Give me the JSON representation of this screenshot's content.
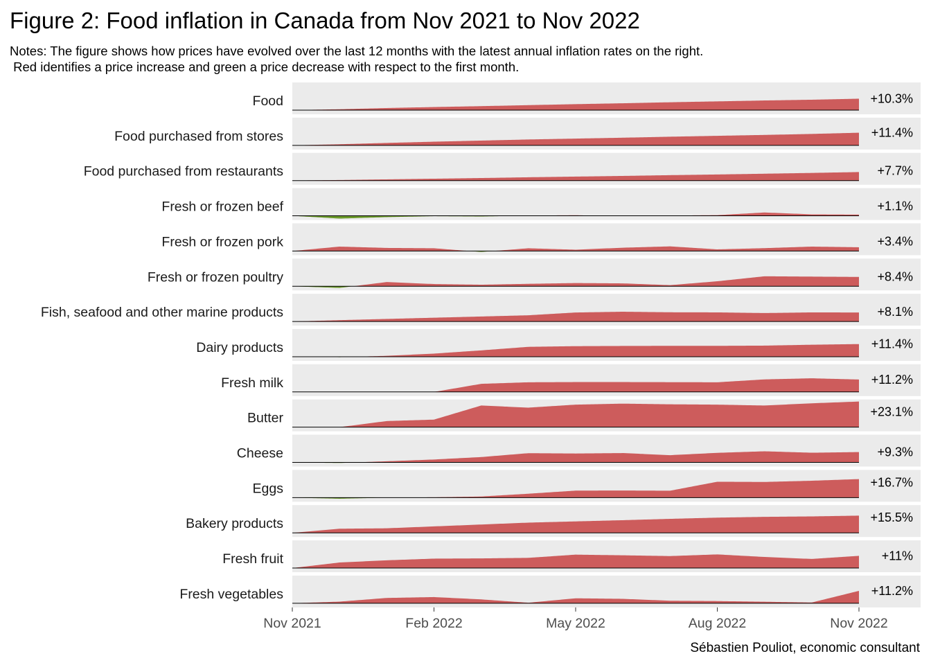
{
  "title": "Figure 2: Food inflation in Canada from Nov 2021 to Nov 2022",
  "notes": "Notes: The figure shows how prices have evolved over the last 12 months with the latest annual inflation rates on the right.\n Red identifies a price increase and green a price decrease with respect to the first month.",
  "credit": "Sébastien Pouliot, economic consultant",
  "colors": {
    "increase": "#cd5c5c",
    "decrease": "#6b9a2a",
    "panel": "#ebebeb",
    "baseline": "#000000"
  },
  "chart_data": {
    "type": "area",
    "x_ticks": [
      "Nov 2021",
      "Feb 2022",
      "May 2022",
      "Aug 2022",
      "Nov 2022"
    ],
    "x_tick_months": [
      0,
      3,
      6,
      9,
      12
    ],
    "x_range_months": [
      0,
      12
    ],
    "y_unit": "% change from Nov 2021",
    "grid": false,
    "series": [
      {
        "name": "Food",
        "rate": "+10.3%",
        "values": [
          0,
          0.8,
          1.9,
          2.8,
          3.6,
          4.5,
          5.4,
          6.2,
          7.1,
          7.9,
          8.7,
          9.4,
          10.3
        ]
      },
      {
        "name": "Food purchased from stores",
        "rate": "+11.4%",
        "values": [
          0,
          1,
          2.2,
          3.3,
          4.3,
          5.3,
          6.1,
          6.9,
          7.8,
          8.6,
          9.4,
          10.3,
          11.4
        ]
      },
      {
        "name": "Food purchased from restaurants",
        "rate": "+7.7%",
        "values": [
          0,
          0.5,
          1.1,
          1.7,
          2.3,
          3,
          3.6,
          4.2,
          4.9,
          5.5,
          6.2,
          6.9,
          7.7
        ]
      },
      {
        "name": "Fresh or frozen beef",
        "rate": "+1.1%",
        "values": [
          0,
          -2.5,
          -1.2,
          -0.3,
          -0.6,
          0.2,
          0.5,
          -0.2,
          0.2,
          0.6,
          3,
          1.3,
          1.1
        ]
      },
      {
        "name": "Fresh or frozen pork",
        "rate": "+3.4%",
        "values": [
          0,
          4,
          2.8,
          2.5,
          -0.8,
          2.5,
          1.2,
          3,
          4.2,
          1.5,
          2.6,
          4,
          3.4
        ]
      },
      {
        "name": "Fresh or frozen poultry",
        "rate": "+8.4%",
        "values": [
          0,
          -1.5,
          3.8,
          2,
          1.4,
          2.2,
          2.9,
          2.6,
          1,
          4.5,
          9,
          8.7,
          8.4
        ]
      },
      {
        "name": "Fish, seafood and other marine products",
        "rate": "+8.1%",
        "values": [
          0,
          1.2,
          2.3,
          3.4,
          4.5,
          5.6,
          8.1,
          8.8,
          8.3,
          8.2,
          7.6,
          8.2,
          8.1
        ]
      },
      {
        "name": "Dairy products",
        "rate": "+11.4%",
        "values": [
          0,
          -0.4,
          0.8,
          2.8,
          5.7,
          8.9,
          9.5,
          9.7,
          9.8,
          9.8,
          10,
          10.8,
          11.4
        ]
      },
      {
        "name": "Fresh milk",
        "rate": "+11.2%",
        "values": [
          0,
          0,
          0,
          0,
          7.3,
          8.7,
          8.9,
          8.9,
          8.8,
          8.7,
          11.3,
          12.3,
          11.2
        ]
      },
      {
        "name": "Butter",
        "rate": "+23.1%",
        "values": [
          0,
          0,
          5.5,
          6.8,
          19.5,
          17.6,
          20.3,
          21.2,
          20.6,
          20.3,
          19.5,
          21.5,
          23.1
        ]
      },
      {
        "name": "Cheese",
        "rate": "+9.3%",
        "values": [
          0,
          -0.5,
          1,
          2.6,
          4.8,
          8.3,
          8,
          8.4,
          6.5,
          8.6,
          10,
          8.7,
          9.3
        ]
      },
      {
        "name": "Eggs",
        "rate": "+16.7%",
        "values": [
          0,
          -1,
          0,
          0.3,
          1,
          3.5,
          6.3,
          6.4,
          6.2,
          14.3,
          14.1,
          15.2,
          16.7
        ]
      },
      {
        "name": "Bakery products",
        "rate": "+15.5%",
        "values": [
          0,
          3.7,
          4.1,
          5.8,
          7.5,
          9.2,
          10.3,
          11.4,
          12.6,
          13.7,
          14.4,
          14.8,
          15.5
        ]
      },
      {
        "name": "Fresh fruit",
        "rate": "+11%",
        "values": [
          0,
          5,
          7,
          8.5,
          8.7,
          9.2,
          12.1,
          11.5,
          10.8,
          12.3,
          10,
          8.2,
          11
        ]
      },
      {
        "name": "Fresh vegetables",
        "rate": "+11.2%",
        "values": [
          0,
          1.5,
          4.8,
          5.6,
          3.5,
          0.5,
          4.5,
          4,
          2.3,
          2,
          1.4,
          0.7,
          11.2
        ]
      }
    ]
  }
}
